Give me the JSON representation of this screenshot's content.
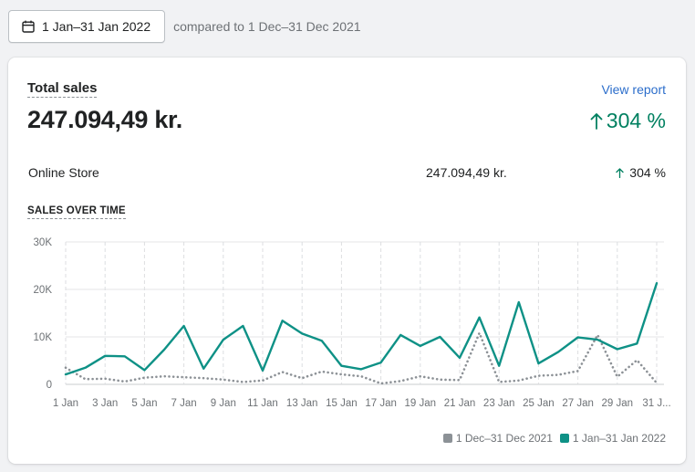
{
  "date_range": {
    "icon": "calendar-icon",
    "label": "1 Jan–31 Jan 2022",
    "compared_label": "compared to 1 Dec–31 Dec 2021"
  },
  "card": {
    "title": "Total sales",
    "view_report": "View report",
    "total_value": "247.094,49 kr.",
    "total_change": "304 %",
    "channel": {
      "name": "Online Store",
      "value": "247.094,49 kr.",
      "change": "304 %"
    },
    "section_label": "SALES OVER TIME"
  },
  "colors": {
    "current": "#0e9186",
    "previous": "#8c9196",
    "positive": "#008060",
    "link": "#2c6ecb"
  },
  "chart_data": {
    "type": "line",
    "title": "",
    "xlabel": "",
    "ylabel": "",
    "ylim": [
      0,
      30000
    ],
    "y_ticks": [
      {
        "value": 0,
        "label": "0"
      },
      {
        "value": 10000,
        "label": "10K"
      },
      {
        "value": 20000,
        "label": "20K"
      },
      {
        "value": 30000,
        "label": "30K"
      }
    ],
    "x": [
      "1 Jan",
      "2 Jan",
      "3 Jan",
      "4 Jan",
      "5 Jan",
      "6 Jan",
      "7 Jan",
      "8 Jan",
      "9 Jan",
      "10 Jan",
      "11 Jan",
      "12 Jan",
      "13 Jan",
      "14 Jan",
      "15 Jan",
      "16 Jan",
      "17 Jan",
      "18 Jan",
      "19 Jan",
      "20 Jan",
      "21 Jan",
      "22 Jan",
      "23 Jan",
      "24 Jan",
      "25 Jan",
      "26 Jan",
      "27 Jan",
      "28 Jan",
      "29 Jan",
      "30 Jan",
      "31 Jan"
    ],
    "x_tick_labels": [
      "1 Jan",
      "3 Jan",
      "5 Jan",
      "7 Jan",
      "9 Jan",
      "11 Jan",
      "13 Jan",
      "15 Jan",
      "17 Jan",
      "19 Jan",
      "21 Jan",
      "23 Jan",
      "25 Jan",
      "27 Jan",
      "29 Jan",
      "31 J..."
    ],
    "grid": true,
    "legend_position": "bottom-right",
    "series": [
      {
        "name": "1 Dec–31 Dec 2021",
        "style": "dotted",
        "values": [
          3500,
          1100,
          1200,
          600,
          1400,
          1700,
          1500,
          1300,
          1000,
          500,
          800,
          2600,
          1300,
          2700,
          2100,
          1700,
          200,
          700,
          1700,
          1000,
          900,
          10800,
          500,
          800,
          1800,
          2000,
          2800,
          10400,
          1600,
          5100,
          300
        ]
      },
      {
        "name": "1 Jan–31 Jan 2022",
        "style": "solid",
        "values": [
          2100,
          3500,
          6000,
          5900,
          3000,
          7300,
          12300,
          3300,
          9400,
          12300,
          2900,
          13400,
          10700,
          9200,
          3900,
          3200,
          4600,
          10400,
          8100,
          10000,
          5600,
          14100,
          3900,
          17300,
          4400,
          6800,
          9900,
          9400,
          7400,
          8600,
          21300
        ]
      }
    ]
  }
}
